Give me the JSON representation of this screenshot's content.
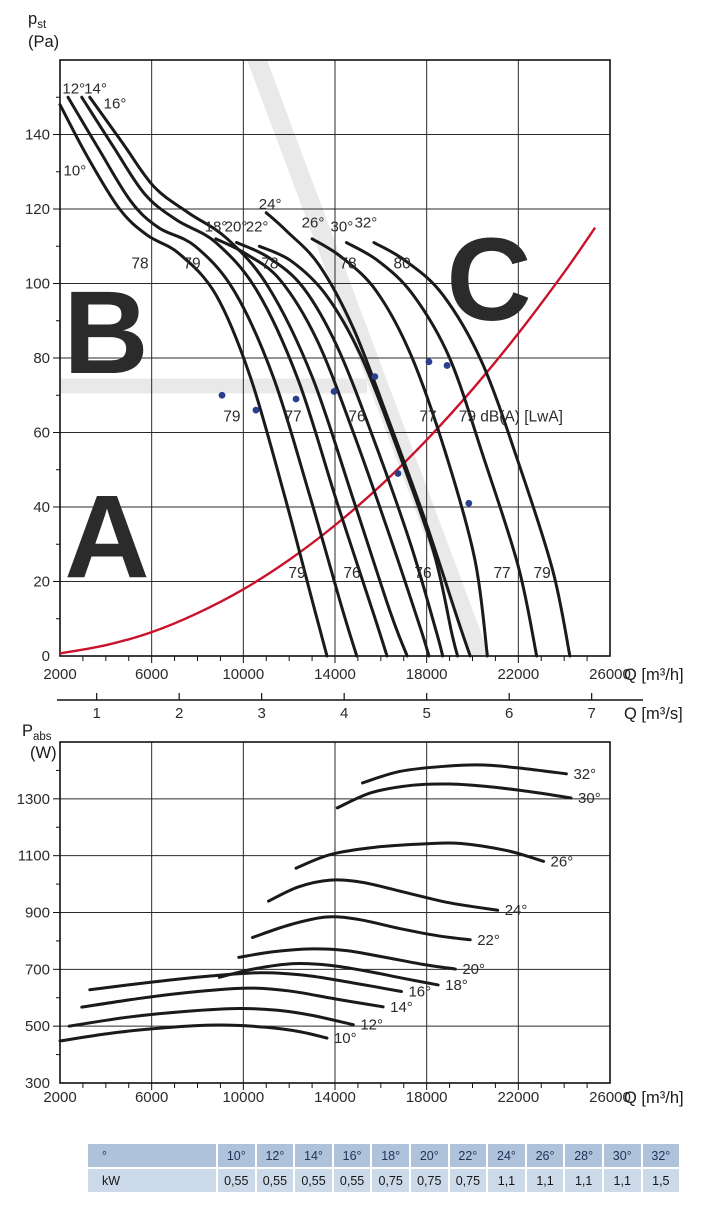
{
  "colors": {
    "curve": "#1a1a1a",
    "grid": "#2a2a2a",
    "system_curve_red": "#c9132b",
    "noise_blue": "#2b3f8f",
    "watermark": "#ececec",
    "band": "#e9e9e9",
    "tick_text": "#2b2b2b",
    "table_header_bg": "#aec3da",
    "table_row_bg": "#ccd9e8",
    "table_header_text": "#1e3357"
  },
  "chart_data": [
    {
      "type": "line",
      "name": "static-pressure-vs-flow",
      "y_axis": {
        "sym": "p",
        "sub": "st",
        "unit": "(Pa)",
        "min": 0,
        "max": 160,
        "tick_step": 20,
        "tick_labels": [
          0,
          20,
          40,
          60,
          80,
          100,
          120,
          140
        ]
      },
      "x_axis": {
        "label": "Q [m³/h]",
        "min": 2000,
        "max": 26000,
        "tick_labels": [
          2000,
          6000,
          10000,
          14000,
          18000,
          22000,
          26000
        ],
        "minor_step": 1000
      },
      "x_axis_secondary": {
        "label": "Q [m³/s]",
        "ticks": [
          1,
          2,
          3,
          4,
          5,
          6,
          7
        ],
        "m3h_per_unit": 3600
      },
      "watermarks": [
        "B",
        "A",
        "C"
      ],
      "grid": "on",
      "zones": {
        "horizontal_band": {
          "q": [
            2000,
            15400
          ],
          "p": [
            70.5,
            74.5
          ]
        },
        "diagonal_band": {
          "top_q": [
            10160,
            11030
          ],
          "top_p": 160,
          "bottom_q": [
            19890,
            20760
          ],
          "bottom_p": 0
        }
      },
      "system_curve": {
        "name": "system-resistance-curve",
        "points": [
          [
            2000,
            0.7
          ],
          [
            4000,
            2.9
          ],
          [
            6000,
            6.4
          ],
          [
            8000,
            11.5
          ],
          [
            10000,
            17.9
          ],
          [
            12000,
            25.8
          ],
          [
            14000,
            35.1
          ],
          [
            16000,
            45.8
          ],
          [
            18000,
            58.0
          ],
          [
            20000,
            71.6
          ],
          [
            22000,
            86.6
          ],
          [
            24000,
            103.0
          ],
          [
            25350,
            115.0
          ]
        ]
      },
      "series": [
        {
          "name": "10°",
          "points": [
            [
              2000,
              148
            ],
            [
              3200,
              134
            ],
            [
              4600,
              120
            ],
            [
              5800,
              113
            ],
            [
              7200,
              108
            ],
            [
              8800,
              97
            ],
            [
              10300,
              75
            ],
            [
              11800,
              43
            ],
            [
              13000,
              15
            ],
            [
              13650,
              0
            ]
          ]
        },
        {
          "name": "12°",
          "points": [
            [
              2350,
              150
            ],
            [
              3700,
              136
            ],
            [
              5100,
              122
            ],
            [
              6300,
              115
            ],
            [
              7900,
              110
            ],
            [
              9600,
              98
            ],
            [
              11300,
              75
            ],
            [
              12900,
              43
            ],
            [
              14300,
              13
            ],
            [
              14950,
              0
            ]
          ]
        },
        {
          "name": "14°",
          "points": [
            [
              2950,
              150
            ],
            [
              4300,
              137
            ],
            [
              5700,
              124
            ],
            [
              7100,
              117
            ],
            [
              8800,
              111
            ],
            [
              10600,
              98
            ],
            [
              12400,
              74
            ],
            [
              14100,
              41
            ],
            [
              15700,
              11
            ],
            [
              16270,
              0
            ]
          ]
        },
        {
          "name": "16°",
          "points": [
            [
              3300,
              150
            ],
            [
              4700,
              138
            ],
            [
              6100,
              126
            ],
            [
              7600,
              119
            ],
            [
              9300,
              112
            ],
            [
              11100,
              99
            ],
            [
              13000,
              75
            ],
            [
              14800,
              42
            ],
            [
              16400,
              12
            ],
            [
              17150,
              0
            ]
          ]
        },
        {
          "name": "18°",
          "points": [
            [
              8800,
              112
            ],
            [
              10100,
              108
            ],
            [
              11600,
              101
            ],
            [
              13200,
              85
            ],
            [
              14800,
              60
            ],
            [
              16400,
              32
            ],
            [
              17700,
              8
            ],
            [
              18100,
              0
            ]
          ]
        },
        {
          "name": "20°",
          "points": [
            [
              9700,
              111
            ],
            [
              11100,
              107
            ],
            [
              12600,
              99
            ],
            [
              14100,
              83
            ],
            [
              15700,
              58
            ],
            [
              17300,
              30
            ],
            [
              18400,
              7
            ],
            [
              18700,
              0
            ]
          ]
        },
        {
          "name": "22°",
          "points": [
            [
              10700,
              110
            ],
            [
              12100,
              106
            ],
            [
              13600,
              97
            ],
            [
              15100,
              81
            ],
            [
              16700,
              56
            ],
            [
              18300,
              28
            ],
            [
              19100,
              6
            ],
            [
              19350,
              0
            ]
          ]
        },
        {
          "name": "24°",
          "points": [
            [
              11000,
              119
            ],
            [
              11900,
              114
            ],
            [
              13300,
              105
            ],
            [
              14800,
              88
            ],
            [
              16300,
              64
            ],
            [
              17900,
              37
            ],
            [
              19400,
              9
            ],
            [
              19900,
              0
            ]
          ]
        },
        {
          "name": "26°",
          "points": [
            [
              13000,
              112
            ],
            [
              14300,
              107
            ],
            [
              15800,
              98
            ],
            [
              17300,
              81
            ],
            [
              18800,
              55
            ],
            [
              20100,
              26
            ],
            [
              20650,
              0
            ]
          ]
        },
        {
          "name": "30°",
          "points": [
            [
              14500,
              111
            ],
            [
              15900,
              106
            ],
            [
              17400,
              97
            ],
            [
              19000,
              80
            ],
            [
              20500,
              53
            ],
            [
              22000,
              24
            ],
            [
              22800,
              0
            ]
          ]
        },
        {
          "name": "32°",
          "points": [
            [
              15700,
              111
            ],
            [
              17100,
              106
            ],
            [
              18700,
              97
            ],
            [
              20400,
              79
            ],
            [
              22000,
              52
            ],
            [
              23500,
              23
            ],
            [
              24250,
              0
            ]
          ]
        }
      ],
      "curve_labels": [
        {
          "text": "12°",
          "q": 2600,
          "p": 151
        },
        {
          "text": "14°",
          "q": 3550,
          "p": 151
        },
        {
          "text": "16°",
          "q": 4400,
          "p": 147
        },
        {
          "text": "10°",
          "q": 2650,
          "p": 129
        },
        {
          "text": "18°",
          "q": 8810,
          "p": 114
        },
        {
          "text": "20°",
          "q": 9680,
          "p": 114
        },
        {
          "text": "22°",
          "q": 10600,
          "p": 114
        },
        {
          "text": "24°",
          "q": 11170,
          "p": 120
        },
        {
          "text": "26°",
          "q": 13040,
          "p": 115
        },
        {
          "text": "30°",
          "q": 14300,
          "p": 114
        },
        {
          "text": "32°",
          "q": 15350,
          "p": 115
        }
      ],
      "noise_labels": [
        {
          "text": "78",
          "q": 5490,
          "p": 104
        },
        {
          "text": "79",
          "q": 7760,
          "p": 104
        },
        {
          "text": "78",
          "q": 11160,
          "p": 104
        },
        {
          "text": "78",
          "q": 14570,
          "p": 104
        },
        {
          "text": "80",
          "q": 16930,
          "p": 104
        },
        {
          "text": "79",
          "q": 9500,
          "p": 63
        },
        {
          "text": "77",
          "q": 12170,
          "p": 63
        },
        {
          "text": "76",
          "q": 14960,
          "p": 63
        },
        {
          "text": "77",
          "q": 18060,
          "p": 63
        },
        {
          "text": "79 dB(A) [LwA]",
          "q": 19400,
          "p": 63,
          "anchor": "start"
        },
        {
          "text": "79",
          "q": 12340,
          "p": 21
        },
        {
          "text": "76",
          "q": 14740,
          "p": 21
        },
        {
          "text": "76",
          "q": 17840,
          "p": 21
        },
        {
          "text": "77",
          "q": 21290,
          "p": 21
        },
        {
          "text": "79",
          "q": 23040,
          "p": 21
        }
      ],
      "noise_points": [
        [
          9070,
          70
        ],
        [
          10550,
          66
        ],
        [
          12300,
          69
        ],
        [
          13960,
          71
        ],
        [
          15740,
          75
        ],
        [
          18100,
          79
        ],
        [
          18890,
          78
        ],
        [
          16750,
          49
        ],
        [
          19840,
          41
        ]
      ]
    },
    {
      "type": "line",
      "name": "absorbed-power-vs-flow",
      "y_axis": {
        "sym": "P",
        "sub": "abs",
        "unit": "(W)",
        "min": 300,
        "max": 1500,
        "tick_step": 200,
        "tick_labels": [
          300,
          500,
          700,
          900,
          1100,
          1300
        ]
      },
      "x_axis": {
        "label": "Q [m³/h]",
        "min": 2000,
        "max": 26000,
        "tick_labels": [
          2000,
          6000,
          10000,
          14000,
          18000,
          22000,
          26000
        ],
        "minor_step": 1000
      },
      "grid": "on",
      "series": [
        {
          "name": "10°",
          "points": [
            [
              2000,
              448
            ],
            [
              4500,
              478
            ],
            [
              7000,
              497
            ],
            [
              9000,
              504
            ],
            [
              11000,
              496
            ],
            [
              12500,
              480
            ],
            [
              13650,
              458
            ]
          ]
        },
        {
          "name": "12°",
          "points": [
            [
              2400,
              500
            ],
            [
              5000,
              532
            ],
            [
              7500,
              552
            ],
            [
              9800,
              562
            ],
            [
              11500,
              556
            ],
            [
              13000,
              538
            ],
            [
              14800,
              505
            ]
          ]
        },
        {
          "name": "14°",
          "points": [
            [
              2950,
              567
            ],
            [
              5500,
              598
            ],
            [
              8000,
              622
            ],
            [
              10200,
              634
            ],
            [
              12000,
              624
            ],
            [
              14000,
              596
            ],
            [
              16100,
              568
            ]
          ]
        },
        {
          "name": "16°",
          "points": [
            [
              3300,
              628
            ],
            [
              6000,
              655
            ],
            [
              8500,
              676
            ],
            [
              10800,
              688
            ],
            [
              12800,
              678
            ],
            [
              14800,
              652
            ],
            [
              16900,
              622
            ]
          ]
        },
        {
          "name": "18°",
          "points": [
            [
              8950,
              672
            ],
            [
              10500,
              702
            ],
            [
              12200,
              720
            ],
            [
              13800,
              714
            ],
            [
              15500,
              692
            ],
            [
              17000,
              668
            ],
            [
              18500,
              645
            ]
          ]
        },
        {
          "name": "20°",
          "points": [
            [
              9800,
              742
            ],
            [
              11300,
              762
            ],
            [
              13000,
              772
            ],
            [
              14500,
              766
            ],
            [
              16200,
              742
            ],
            [
              17800,
              718
            ],
            [
              19250,
              701
            ]
          ]
        },
        {
          "name": "22°",
          "points": [
            [
              10400,
              812
            ],
            [
              12000,
              856
            ],
            [
              13600,
              884
            ],
            [
              15000,
              876
            ],
            [
              16800,
              844
            ],
            [
              18500,
              818
            ],
            [
              19900,
              804
            ]
          ]
        },
        {
          "name": "24°",
          "points": [
            [
              11100,
              940
            ],
            [
              12400,
              990
            ],
            [
              13800,
              1014
            ],
            [
              15200,
              1006
            ],
            [
              17000,
              972
            ],
            [
              19000,
              934
            ],
            [
              21100,
              908
            ]
          ]
        },
        {
          "name": "26°",
          "points": [
            [
              12300,
              1056
            ],
            [
              13800,
              1104
            ],
            [
              15800,
              1130
            ],
            [
              18000,
              1142
            ],
            [
              19500,
              1143
            ],
            [
              21500,
              1118
            ],
            [
              23100,
              1080
            ]
          ]
        },
        {
          "name": "30°",
          "points": [
            [
              14100,
              1268
            ],
            [
              15600,
              1322
            ],
            [
              17400,
              1348
            ],
            [
              19000,
              1352
            ],
            [
              20800,
              1342
            ],
            [
              22800,
              1322
            ],
            [
              24300,
              1303
            ]
          ]
        },
        {
          "name": "32°",
          "points": [
            [
              15200,
              1356
            ],
            [
              16800,
              1396
            ],
            [
              18700,
              1414
            ],
            [
              20500,
              1419
            ],
            [
              22300,
              1406
            ],
            [
              24100,
              1388
            ]
          ]
        }
      ]
    }
  ],
  "table": {
    "corner_label": "°",
    "col_headers": [
      "10°",
      "12°",
      "14°",
      "16°",
      "18°",
      "20°",
      "22°",
      "24°",
      "26°",
      "28°",
      "30°",
      "32°"
    ],
    "row_label": "kW",
    "values": [
      "0,55",
      "0,55",
      "0,55",
      "0,55",
      "0,75",
      "0,75",
      "0,75",
      "1,1",
      "1,1",
      "1,1",
      "1,1",
      "1,5"
    ]
  }
}
